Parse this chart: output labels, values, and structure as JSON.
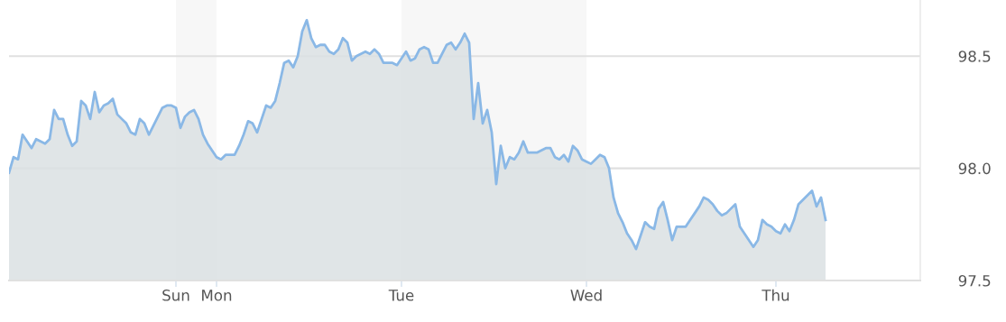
{
  "chart_data": {
    "type": "area",
    "categories": [
      null,
      null,
      null,
      null,
      null,
      null,
      null,
      null,
      null,
      null,
      null,
      null,
      null,
      null,
      null,
      null,
      null,
      null,
      null,
      null,
      null,
      null,
      null,
      null,
      null,
      null,
      null,
      null,
      null,
      null,
      null,
      null,
      null,
      null,
      null,
      null,
      null,
      "Sun",
      null,
      null,
      null,
      null,
      null,
      null,
      null,
      null,
      "Mon",
      null,
      null,
      null,
      null,
      null,
      null,
      null,
      null,
      null,
      null,
      null,
      null,
      null,
      null,
      null,
      null,
      null,
      null,
      null,
      null,
      null,
      null,
      null,
      null,
      null,
      null,
      null,
      null,
      null,
      null,
      null,
      null,
      null,
      null,
      null,
      null,
      null,
      null,
      null,
      null,
      "Tue",
      null,
      null,
      null,
      null,
      null,
      null,
      null,
      null,
      null,
      null,
      null,
      null,
      null,
      null,
      null,
      null,
      null,
      null,
      null,
      null,
      null,
      null,
      null,
      null,
      null,
      null,
      null,
      null,
      null,
      null,
      null,
      null,
      null,
      null,
      null,
      null,
      null,
      null,
      null,
      null,
      "Wed",
      null,
      null,
      null,
      null,
      null,
      null,
      null,
      null,
      null,
      null,
      null,
      null,
      null,
      null,
      null,
      null,
      null,
      null,
      null,
      null,
      null,
      null,
      null,
      null,
      null,
      null,
      null,
      null,
      null,
      null,
      null,
      null,
      null,
      null,
      null,
      null,
      null,
      null,
      null,
      null,
      null,
      "Thu",
      null,
      null,
      null,
      null,
      null,
      null,
      null,
      null,
      null,
      null,
      null,
      null,
      null,
      null,
      null,
      null,
      null,
      null,
      null,
      null,
      null,
      null,
      null,
      null,
      null,
      null,
      null,
      null,
      null,
      null,
      null,
      null
    ],
    "series": [
      {
        "color": "#8ab8e6",
        "values": [
          97.98,
          98.05,
          98.04,
          98.15,
          98.12,
          98.09,
          98.13,
          98.12,
          98.11,
          98.13,
          98.26,
          98.22,
          98.22,
          98.15,
          98.1,
          98.12,
          98.3,
          98.28,
          98.22,
          98.34,
          98.25,
          98.28,
          98.29,
          98.31,
          98.24,
          98.22,
          98.2,
          98.16,
          98.15,
          98.22,
          98.2,
          98.15,
          98.19,
          98.23,
          98.27,
          98.28,
          98.28,
          98.27,
          98.18,
          98.23,
          98.25,
          98.26,
          98.22,
          98.15,
          98.11,
          98.08,
          98.05,
          98.04,
          98.06,
          98.06,
          98.06,
          98.1,
          98.15,
          98.21,
          98.2,
          98.16,
          98.22,
          98.28,
          98.27,
          98.3,
          98.38,
          98.47,
          98.48,
          98.45,
          98.5,
          98.61,
          98.66,
          98.58,
          98.54,
          98.55,
          98.55,
          98.52,
          98.51,
          98.53,
          98.58,
          98.56,
          98.48,
          98.5,
          98.51,
          98.52,
          98.51,
          98.53,
          98.51,
          98.47,
          98.47,
          98.47,
          98.46,
          98.49,
          98.52,
          98.48,
          98.49,
          98.53,
          98.54,
          98.53,
          98.47,
          98.47,
          98.51,
          98.55,
          98.56,
          98.53,
          98.56,
          98.6,
          98.56,
          98.22,
          98.38,
          98.2,
          98.26,
          98.16,
          97.93,
          98.1,
          98.0,
          98.05,
          98.04,
          98.07,
          98.12,
          98.07,
          98.07,
          98.07,
          98.08,
          98.09,
          98.09,
          98.05,
          98.04,
          98.06,
          98.03,
          98.1,
          98.08,
          98.04,
          98.03,
          98.02,
          98.04,
          98.06,
          98.05,
          98.0,
          97.87,
          97.8,
          97.76,
          97.71,
          97.68,
          97.64,
          97.7,
          97.76,
          97.74,
          97.73,
          97.82,
          97.85,
          97.77,
          97.68,
          97.74,
          97.74,
          97.74,
          97.77,
          97.8,
          97.83,
          97.87,
          97.86,
          97.84,
          97.81,
          97.79,
          97.8,
          97.82,
          97.84,
          97.74,
          97.71,
          97.68,
          97.65,
          97.68,
          97.77,
          97.75,
          97.74,
          97.72,
          97.71,
          97.75,
          97.72,
          97.77,
          97.84,
          97.86,
          97.88,
          97.9,
          97.83,
          97.87,
          97.77,
          null,
          null,
          null,
          null,
          null,
          null,
          null,
          null,
          null,
          null,
          null,
          null,
          null,
          null,
          null,
          null,
          null,
          null,
          null,
          null,
          null
        ]
      }
    ],
    "ylim": [
      97.5,
      98.75
    ],
    "yticks": [
      {
        "value": 97.5,
        "label": "97.5"
      },
      {
        "value": 98.0,
        "label": "98.0"
      },
      {
        "value": 98.5,
        "label": "98.5"
      }
    ],
    "grid": "y",
    "bands": [
      {
        "axis": "x",
        "from": "Sun",
        "to": "Mon",
        "color": "#f7f7f7"
      },
      {
        "axis": "x",
        "from": "Tue",
        "to": "Wed",
        "color": "#f7f7f7"
      }
    ]
  }
}
